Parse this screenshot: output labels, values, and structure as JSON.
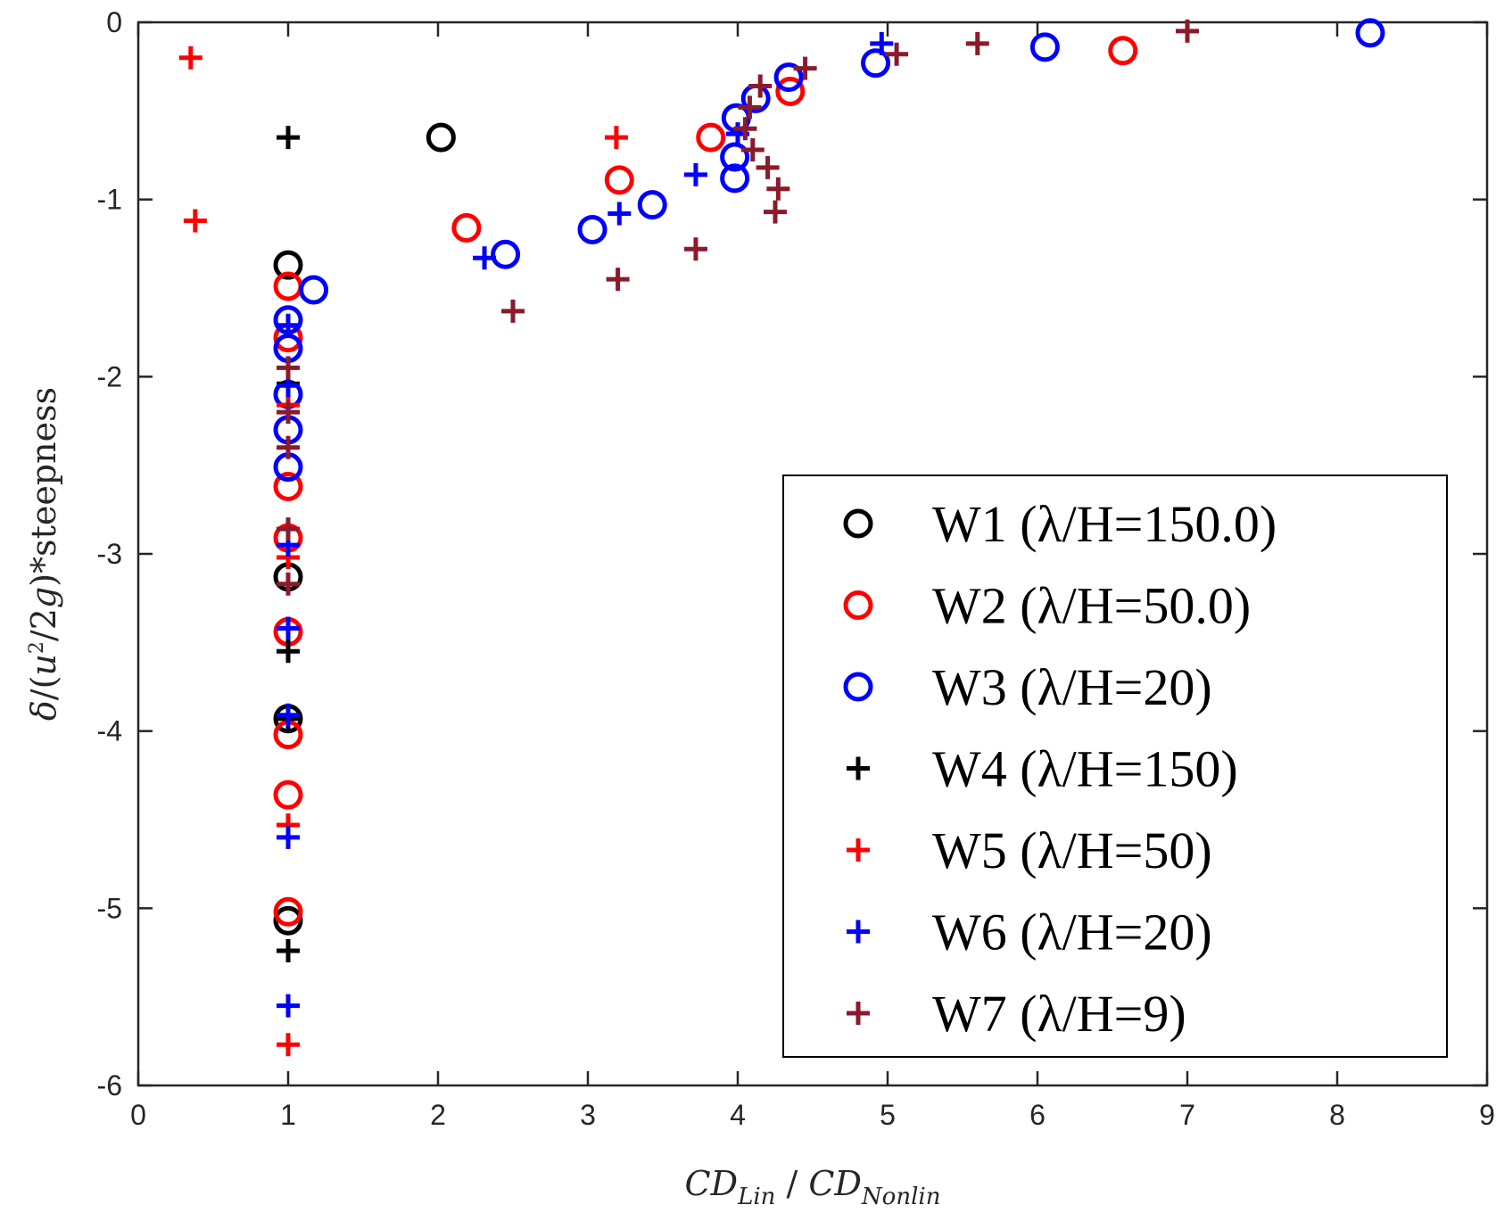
{
  "chart_data": {
    "type": "scatter",
    "xlabel": {
      "CD1": "CD",
      "sub1": "Lin",
      "sep": " / ",
      "CD2": "CD",
      "sub2": "Nonlin"
    },
    "ylabel": {
      "delta": "δ",
      "open": "/(",
      "u": "u",
      "sup": "2",
      "mid": "/2",
      "g": "g",
      "close": ")",
      "rest": "*steepness"
    },
    "xlim": [
      0,
      9
    ],
    "ylim": [
      -6,
      0
    ],
    "xticks": [
      0,
      1,
      2,
      3,
      4,
      5,
      6,
      7,
      8,
      9
    ],
    "yticks": [
      0,
      -1,
      -2,
      -3,
      -4,
      -5,
      -6
    ],
    "grid": false,
    "legend_position": "bottom-right",
    "series": [
      {
        "name": "W1",
        "label": "W1 (λ/H=150.0)",
        "marker": "circle",
        "color": "#000000",
        "points": [
          [
            2.02,
            -0.65
          ],
          [
            1.0,
            -1.37
          ],
          [
            1.0,
            -3.13
          ],
          [
            1.0,
            -3.93
          ],
          [
            1.0,
            -5.07
          ]
        ]
      },
      {
        "name": "W2",
        "label": "W2 (λ/H=50.0)",
        "marker": "circle",
        "color": "#ff0000",
        "points": [
          [
            6.57,
            -0.16
          ],
          [
            4.35,
            -0.39
          ],
          [
            3.82,
            -0.65
          ],
          [
            3.21,
            -0.89
          ],
          [
            2.19,
            -1.16
          ],
          [
            1.0,
            -1.49
          ],
          [
            1.0,
            -1.78
          ],
          [
            1.0,
            -2.62
          ],
          [
            1.0,
            -2.91
          ],
          [
            1.0,
            -3.44
          ],
          [
            1.0,
            -4.02
          ],
          [
            1.0,
            -4.36
          ],
          [
            1.0,
            -5.02
          ]
        ]
      },
      {
        "name": "W3",
        "label": "W3 (λ/H=20)",
        "marker": "circle",
        "color": "#0000ff",
        "points": [
          [
            8.22,
            -0.06
          ],
          [
            6.05,
            -0.14
          ],
          [
            4.92,
            -0.23
          ],
          [
            4.34,
            -0.31
          ],
          [
            4.12,
            -0.43
          ],
          [
            3.99,
            -0.54
          ],
          [
            3.98,
            -0.76
          ],
          [
            3.98,
            -0.88
          ],
          [
            3.43,
            -1.03
          ],
          [
            3.03,
            -1.17
          ],
          [
            2.45,
            -1.31
          ],
          [
            1.17,
            -1.51
          ],
          [
            1.0,
            -1.68
          ],
          [
            1.0,
            -1.84
          ],
          [
            1.0,
            -2.1
          ],
          [
            1.0,
            -2.3
          ],
          [
            1.0,
            -2.51
          ]
        ]
      },
      {
        "name": "W4",
        "label": "W4 (λ/H=150)",
        "marker": "plus",
        "color": "#000000",
        "points": [
          [
            1.0,
            -0.65
          ],
          [
            1.0,
            -2.04
          ],
          [
            1.0,
            -3.55
          ],
          [
            1.0,
            -3.93
          ],
          [
            1.0,
            -5.24
          ]
        ]
      },
      {
        "name": "W5",
        "label": "W5 (λ/H=50)",
        "marker": "plus",
        "color": "#ff0000",
        "points": [
          [
            0.35,
            -0.2
          ],
          [
            0.38,
            -1.12
          ],
          [
            3.19,
            -0.65
          ],
          [
            1.0,
            -2.16
          ],
          [
            1.0,
            -3.02
          ],
          [
            1.0,
            -4.53
          ],
          [
            1.0,
            -5.77
          ]
        ]
      },
      {
        "name": "W6",
        "label": "W6 (λ/H=20)",
        "marker": "plus",
        "color": "#0000ff",
        "points": [
          [
            4.96,
            -0.12
          ],
          [
            4.0,
            -0.63
          ],
          [
            3.72,
            -0.86
          ],
          [
            3.21,
            -1.08
          ],
          [
            2.31,
            -1.33
          ],
          [
            1.0,
            -1.71
          ],
          [
            1.0,
            -2.05
          ],
          [
            1.0,
            -2.95
          ],
          [
            1.0,
            -3.42
          ],
          [
            1.0,
            -3.91
          ],
          [
            1.0,
            -4.6
          ],
          [
            1.0,
            -5.55
          ]
        ]
      },
      {
        "name": "W7",
        "label": "W7 (λ/H=9)",
        "marker": "plus",
        "color": "#8b1a2a",
        "points": [
          [
            7.0,
            -0.05
          ],
          [
            5.6,
            -0.12
          ],
          [
            5.06,
            -0.18
          ],
          [
            4.45,
            -0.26
          ],
          [
            4.15,
            -0.36
          ],
          [
            4.08,
            -0.48
          ],
          [
            4.05,
            -0.6
          ],
          [
            4.1,
            -0.72
          ],
          [
            4.2,
            -0.82
          ],
          [
            4.27,
            -0.94
          ],
          [
            4.25,
            -1.07
          ],
          [
            3.72,
            -1.28
          ],
          [
            3.2,
            -1.45
          ],
          [
            2.5,
            -1.63
          ],
          [
            1.0,
            -1.95
          ],
          [
            1.0,
            -2.2
          ],
          [
            1.0,
            -2.4
          ],
          [
            1.0,
            -2.86
          ],
          [
            1.0,
            -3.17
          ]
        ]
      }
    ]
  }
}
